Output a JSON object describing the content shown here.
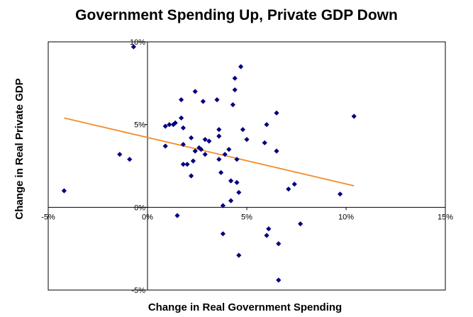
{
  "chart_data": {
    "type": "scatter",
    "title": "Government Spending Up, Private GDP Down",
    "xlabel": "Change in Real Government Spending",
    "ylabel": "Change in Real Private GDP",
    "xlim": [
      -0.05,
      0.15
    ],
    "ylim": [
      -0.05,
      0.1
    ],
    "x_ticks": [
      -0.05,
      0,
      0.05,
      0.1,
      0.15
    ],
    "x_tick_labels": [
      "-5%",
      "0%",
      "5%",
      "10%",
      "15%"
    ],
    "y_ticks": [
      -0.05,
      0,
      0.05,
      0.1
    ],
    "y_tick_labels": [
      "-5%",
      "0%",
      "5%",
      "10%"
    ],
    "grid": false,
    "legend": "none",
    "marker_color": "#000080",
    "trend_color": "#F28C28",
    "series": [
      {
        "marker": "diamond",
        "points": [
          [
            -0.042,
            0.01
          ],
          [
            -0.014,
            0.032
          ],
          [
            -0.009,
            0.029
          ],
          [
            -0.007,
            0.097
          ],
          [
            0.009,
            0.037
          ],
          [
            0.009,
            0.049
          ],
          [
            0.011,
            0.05
          ],
          [
            0.013,
            0.05
          ],
          [
            0.014,
            0.051
          ],
          [
            0.015,
            -0.005
          ],
          [
            0.017,
            0.054
          ],
          [
            0.017,
            0.065
          ],
          [
            0.018,
            0.048
          ],
          [
            0.018,
            0.038
          ],
          [
            0.018,
            0.026
          ],
          [
            0.02,
            0.026
          ],
          [
            0.022,
            0.019
          ],
          [
            0.022,
            0.042
          ],
          [
            0.023,
            0.028
          ],
          [
            0.024,
            0.034
          ],
          [
            0.024,
            0.07
          ],
          [
            0.026,
            0.036
          ],
          [
            0.027,
            0.035
          ],
          [
            0.028,
            0.064
          ],
          [
            0.029,
            0.041
          ],
          [
            0.029,
            0.032
          ],
          [
            0.031,
            0.04
          ],
          [
            0.035,
            0.065
          ],
          [
            0.036,
            0.047
          ],
          [
            0.036,
            0.043
          ],
          [
            0.036,
            0.029
          ],
          [
            0.037,
            0.021
          ],
          [
            0.038,
            0.001
          ],
          [
            0.038,
            -0.016
          ],
          [
            0.039,
            0.032
          ],
          [
            0.041,
            0.035
          ],
          [
            0.042,
            0.004
          ],
          [
            0.042,
            0.016
          ],
          [
            0.043,
            0.062
          ],
          [
            0.044,
            0.071
          ],
          [
            0.044,
            0.078
          ],
          [
            0.045,
            0.015
          ],
          [
            0.045,
            0.029
          ],
          [
            0.046,
            0.009
          ],
          [
            0.046,
            -0.029
          ],
          [
            0.047,
            0.085
          ],
          [
            0.048,
            0.047
          ],
          [
            0.05,
            0.041
          ],
          [
            0.059,
            0.039
          ],
          [
            0.06,
            0.05
          ],
          [
            0.06,
            -0.017
          ],
          [
            0.061,
            -0.013
          ],
          [
            0.065,
            0.034
          ],
          [
            0.065,
            0.057
          ],
          [
            0.066,
            -0.022
          ],
          [
            0.066,
            -0.044
          ],
          [
            0.071,
            0.011
          ],
          [
            0.074,
            0.014
          ],
          [
            0.077,
            -0.01
          ],
          [
            0.097,
            0.008
          ],
          [
            0.104,
            0.055
          ]
        ]
      }
    ],
    "trendline": {
      "x": [
        -0.042,
        0.104
      ],
      "y": [
        0.054,
        0.013
      ]
    }
  }
}
